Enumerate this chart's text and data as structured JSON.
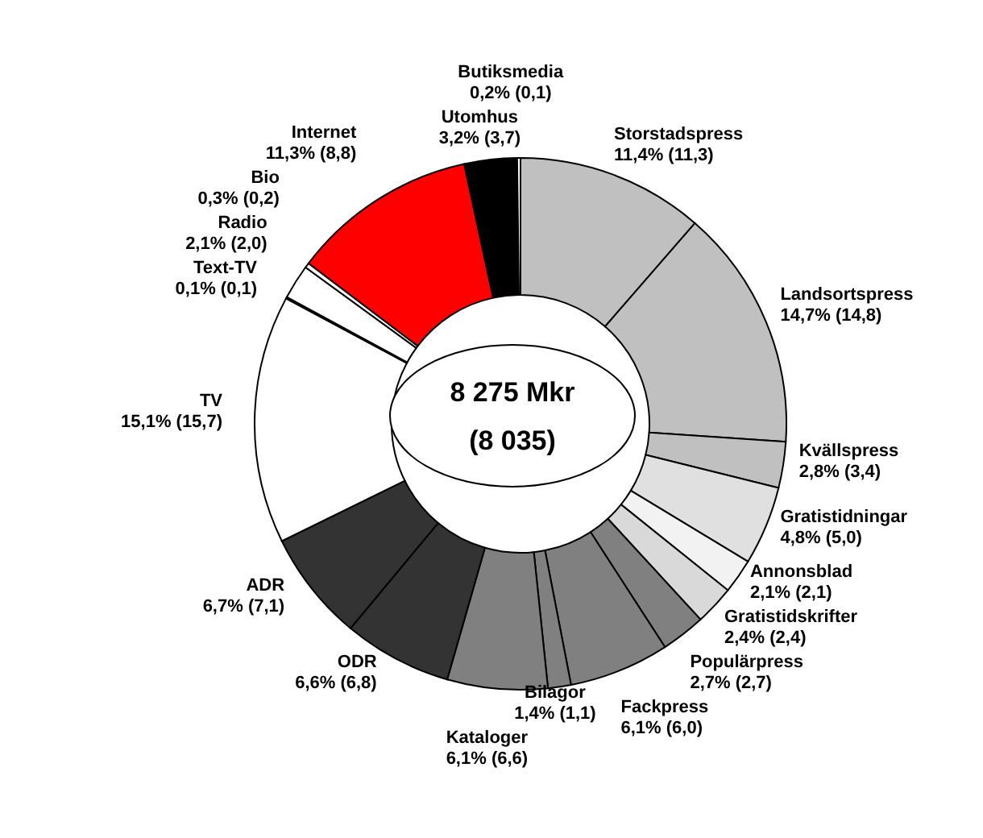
{
  "chart_data": {
    "type": "donut",
    "categories": [
      "Storstadspress",
      "Landsortspress",
      "Kvällspress",
      "Gratistidningar",
      "Annonsblad",
      "Gratistidskrifter",
      "Populärpress",
      "Fackpress",
      "Bilagor",
      "Kataloger",
      "ODR",
      "ADR",
      "TV",
      "Text-TV",
      "Radio",
      "Bio",
      "Internet",
      "Utomhus",
      "Butiksmedia"
    ],
    "values": [
      11.4,
      14.7,
      2.8,
      4.8,
      2.1,
      2.4,
      2.7,
      6.1,
      1.4,
      6.1,
      6.6,
      6.7,
      15.1,
      0.1,
      2.1,
      0.3,
      11.3,
      3.2,
      0.2
    ],
    "value_labels": [
      "11,4% (11,3)",
      "14,7% (14,8)",
      "2,8% (3,4)",
      "4,8% (5,0)",
      "2,1% (2,1)",
      "2,4% (2,4)",
      "2,7% (2,7)",
      "6,1% (6,0)",
      "1,4% (1,1)",
      "6,1% (6,6)",
      "6,6% (6,8)",
      "6,7% (7,1)",
      "15,1% (15,7)",
      "0,1% (0,1)",
      "2,1% (2,0)",
      "0,3% (0,2)",
      "11,3% (8,8)",
      "3,2% (3,7)",
      "0,2% (0,1)"
    ],
    "colors": [
      "#c0c0c0",
      "#c0c0c0",
      "#c0c0c0",
      "#e0e0e0",
      "#f2f2f2",
      "#d9d9d9",
      "#808080",
      "#808080",
      "#808080",
      "#808080",
      "#333333",
      "#333333",
      "#ffffff",
      "#000000",
      "#ffffff",
      "#ffffff",
      "#ff0000",
      "#000000",
      "#ffffff"
    ],
    "annotations": [
      "8 275 Mkr",
      "(8 035)"
    ]
  }
}
